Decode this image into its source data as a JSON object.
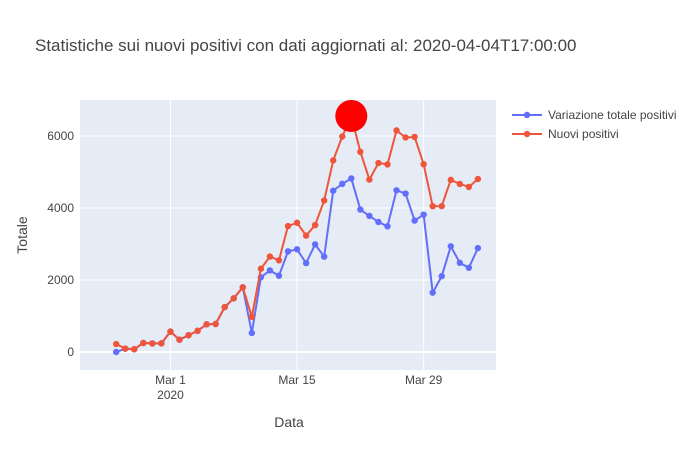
{
  "chart_data": {
    "type": "line",
    "title": "Statistiche sui nuovi positivi con dati aggiornati al: 2020-04-04T17:00:00",
    "xlabel": "Data",
    "ylabel": "Totale",
    "xlim": [
      "2020-02-20",
      "2020-04-06"
    ],
    "ylim": [
      -500,
      7000
    ],
    "x_ticks": [
      "2020-03-01",
      "2020-03-15",
      "2020-03-29"
    ],
    "x_tick_labels": [
      "Mar 1",
      "Mar 15",
      "Mar 29"
    ],
    "x_tick_sublabel": "2020",
    "y_ticks": [
      0,
      2000,
      4000,
      6000
    ],
    "y_tick_labels": [
      "0",
      "2000",
      "4000",
      "6000"
    ],
    "grid": true,
    "legend_position": "top-right",
    "x": [
      "2020-02-24",
      "2020-02-25",
      "2020-02-26",
      "2020-02-27",
      "2020-02-28",
      "2020-02-29",
      "2020-03-01",
      "2020-03-02",
      "2020-03-03",
      "2020-03-04",
      "2020-03-05",
      "2020-03-06",
      "2020-03-07",
      "2020-03-08",
      "2020-03-09",
      "2020-03-10",
      "2020-03-11",
      "2020-03-12",
      "2020-03-13",
      "2020-03-14",
      "2020-03-15",
      "2020-03-16",
      "2020-03-17",
      "2020-03-18",
      "2020-03-19",
      "2020-03-20",
      "2020-03-21",
      "2020-03-22",
      "2020-03-23",
      "2020-03-24",
      "2020-03-25",
      "2020-03-26",
      "2020-03-27",
      "2020-03-28",
      "2020-03-29",
      "2020-03-30",
      "2020-03-31",
      "2020-04-01",
      "2020-04-02",
      "2020-04-03",
      "2020-04-04"
    ],
    "series": [
      {
        "name": "Variazione totale positivi",
        "color": "#636efa",
        "values": [
          0,
          93,
          78,
          250,
          238,
          240,
          566,
          342,
          466,
          587,
          769,
          778,
          1247,
          1492,
          1797,
          529,
          2076,
          2266,
          2118,
          2795,
          2853,
          2470,
          2989,
          2648,
          4480,
          4670,
          4821,
          3957,
          3780,
          3612,
          3491,
          4492,
          4401,
          3651,
          3815,
          1648,
          2107,
          2937,
          2477,
          2339,
          2886
        ]
      },
      {
        "name": "Nuovi positivi",
        "color": "#ef553b",
        "values": [
          221,
          93,
          78,
          250,
          238,
          240,
          566,
          342,
          466,
          587,
          769,
          778,
          1247,
          1492,
          1797,
          977,
          2313,
          2651,
          2547,
          3497,
          3590,
          3233,
          3526,
          4207,
          5322,
          5986,
          6557,
          5560,
          4789,
          5249,
          5210,
          6153,
          5959,
          5974,
          5217,
          4050,
          4053,
          4782,
          4668,
          4585,
          4805
        ]
      }
    ],
    "highlight": {
      "x": "2020-03-21",
      "y": 6557,
      "color": "#ff0000"
    }
  }
}
